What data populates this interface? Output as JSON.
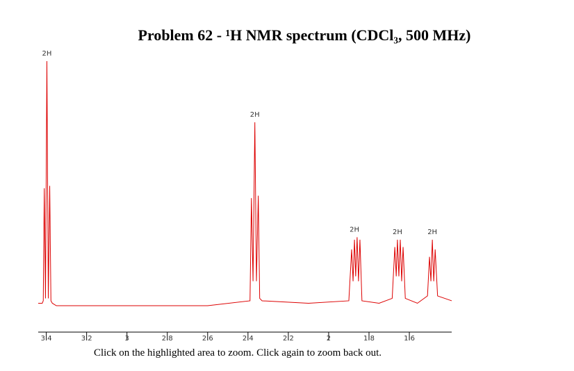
{
  "chart_data": {
    "type": "line",
    "title": "Problem 62 - ¹H NMR spectrum (CDCl₃, 500 MHz)",
    "note": "Click on the highlighted area to zoom. Click again to zoom back out.",
    "x": [
      3.44,
      3.42,
      3.415,
      3.41,
      3.404,
      3.397,
      3.39,
      3.383,
      3.377,
      3.37,
      3.35,
      2.6,
      2.39,
      2.383,
      2.375,
      2.366,
      2.358,
      2.349,
      2.342,
      2.33,
      2.1,
      1.9,
      1.886,
      1.879,
      1.872,
      1.866,
      1.859,
      1.852,
      1.845,
      1.835,
      1.75,
      1.685,
      1.672,
      1.665,
      1.659,
      1.652,
      1.645,
      1.638,
      1.631,
      1.62,
      1.56,
      1.51,
      1.5,
      1.493,
      1.486,
      1.479,
      1.472,
      1.46,
      1.39
    ],
    "values": [
      1,
      1,
      2,
      48,
      3,
      100,
      3,
      49,
      2,
      1,
      0,
      0,
      2,
      44,
      10,
      75,
      10,
      45,
      3,
      2,
      1,
      2,
      23,
      10,
      27,
      12,
      28,
      10,
      27,
      2,
      1,
      3,
      24,
      12,
      27,
      12,
      27,
      10,
      24,
      3,
      1,
      4,
      20,
      10,
      27,
      10,
      23,
      4,
      2
    ],
    "color": "#dd0000",
    "xlim": [
      3.44,
      1.39
    ],
    "ylim": [
      0,
      100
    ],
    "xticks": [
      3.4,
      3.2,
      3,
      2.8,
      2.6,
      2.4,
      2.2,
      2,
      1.8,
      1.6
    ],
    "annotations": [
      {
        "text": "2H",
        "x": 3.397
      },
      {
        "text": "2H",
        "x": 2.366
      },
      {
        "text": "2H",
        "x": 1.872
      },
      {
        "text": "2H",
        "x": 1.659
      },
      {
        "text": "2H",
        "x": 1.486
      }
    ]
  }
}
